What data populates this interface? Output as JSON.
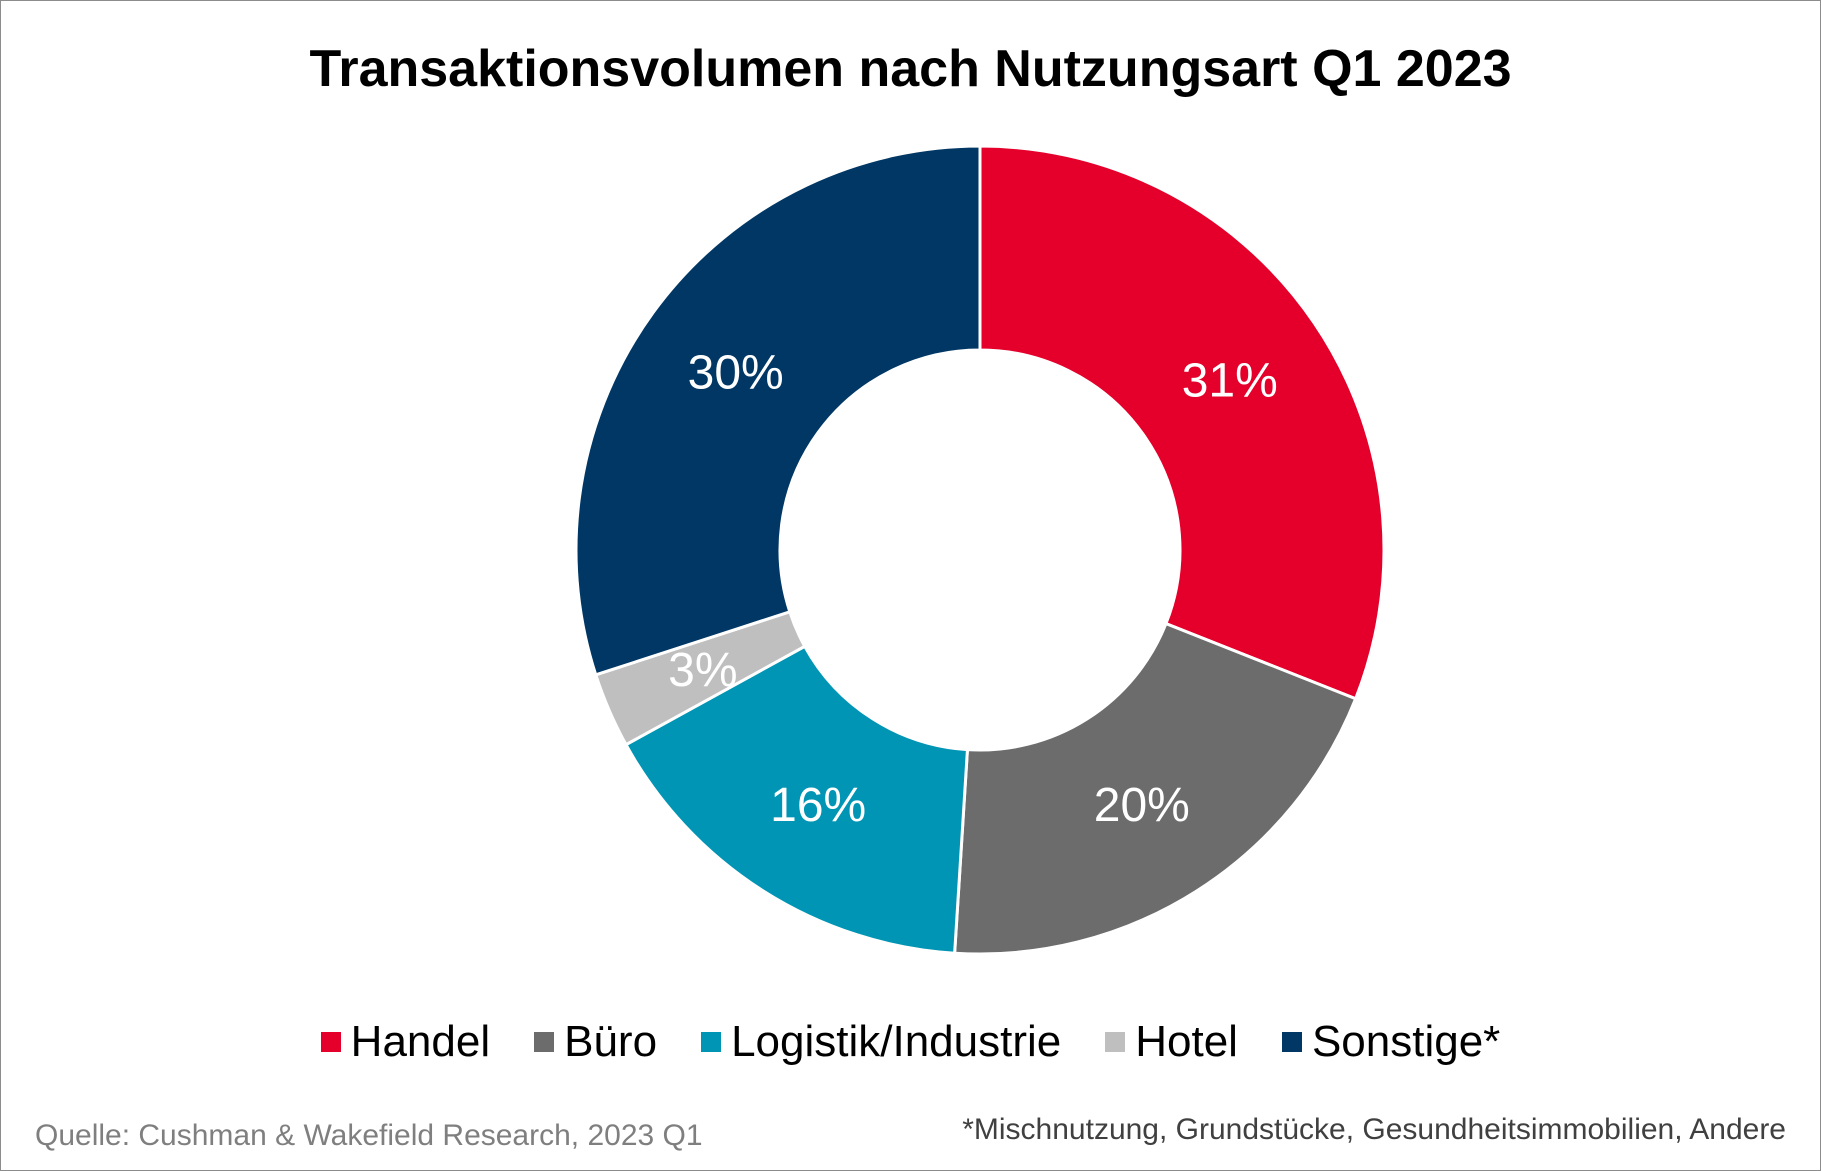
{
  "chart_data": {
    "type": "pie",
    "variant": "donut",
    "title": "Transaktionsvolumen nach Nutzungsart Q1 2023",
    "categories": [
      "Handel",
      "Büro",
      "Logistik/Industrie",
      "Hotel",
      "Sonstige*"
    ],
    "values": [
      31,
      20,
      16,
      3,
      30
    ],
    "data_labels": [
      "31%",
      "20%",
      "16%",
      "3%",
      "30%"
    ],
    "colors": [
      "#E4002B",
      "#6B6C6B",
      "#0095B4",
      "#BFBFBF",
      "#003764"
    ],
    "legend_position": "bottom",
    "start_angle": "top, clockwise"
  },
  "footer": {
    "source": "Quelle: Cushman & Wakefield Research, 2023 Q1",
    "note": "*Mischnutzung, Grundstücke, Gesundheitsimmobilien, Andere"
  }
}
